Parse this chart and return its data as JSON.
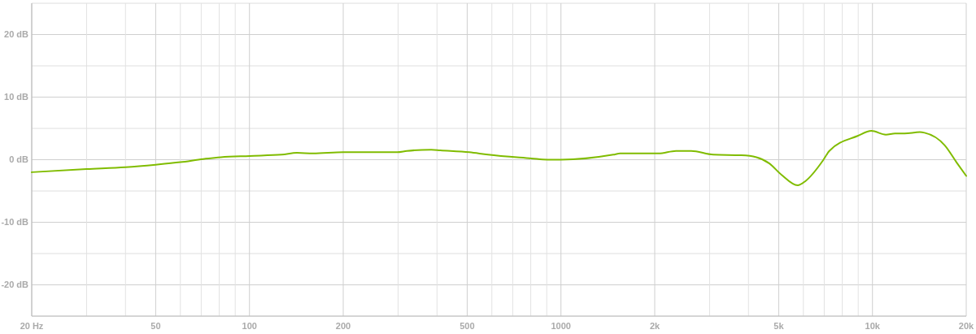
{
  "chart_data": {
    "type": "line",
    "log": "x",
    "grid": true,
    "marker": "none",
    "line_style": "solid",
    "xlim": [
      20,
      20000
    ],
    "ylim": [
      -25,
      25
    ],
    "xticks": [
      {
        "value": 20,
        "label": "20 Hz"
      },
      {
        "value": 30,
        "label": null
      },
      {
        "value": 40,
        "label": null
      },
      50,
      {
        "value": 60,
        "label": null
      },
      {
        "value": 70,
        "label": null
      },
      {
        "value": 80,
        "label": null
      },
      {
        "value": 90,
        "label": null
      },
      100,
      200,
      {
        "value": 300,
        "label": null
      },
      {
        "value": 400,
        "label": null
      },
      500,
      {
        "value": 600,
        "label": null
      },
      {
        "value": 700,
        "label": null
      },
      {
        "value": 800,
        "label": null
      },
      {
        "value": 900,
        "label": null
      },
      1000,
      {
        "value": 2000,
        "label": "2k"
      },
      {
        "value": 3000,
        "label": null
      },
      {
        "value": 4000,
        "label": null
      },
      {
        "value": 5000,
        "label": "5k"
      },
      {
        "value": 6000,
        "label": null
      },
      {
        "value": 7000,
        "label": null
      },
      {
        "value": 8000,
        "label": null
      },
      {
        "value": 9000,
        "label": null
      },
      {
        "value": 10000,
        "label": "10k"
      },
      {
        "value": 20000,
        "label": "20k"
      }
    ],
    "yticks": [
      {
        "value": -25,
        "label": null
      },
      {
        "value": -20,
        "label": "-20 dB"
      },
      {
        "value": -15,
        "label": null
      },
      {
        "value": -10,
        "label": "-10 dB"
      },
      {
        "value": -5,
        "label": null
      },
      {
        "value": 0,
        "label": "0 dB"
      },
      {
        "value": 5,
        "label": null
      },
      {
        "value": 10,
        "label": "10 dB"
      },
      {
        "value": 15,
        "label": null
      },
      {
        "value": 20,
        "label": "20 dB"
      },
      {
        "value": 25,
        "label": null
      }
    ],
    "series": [
      {
        "color": "#80bc00",
        "x": [
          20,
          30,
          40,
          50,
          60,
          71,
          81,
          100,
          127,
          142,
          160,
          200,
          298,
          320,
          383,
          410,
          508,
          583,
          805,
          904,
          1000,
          1473,
          1550,
          1897,
          2060,
          2340,
          2620,
          3083,
          3794,
          4240,
          4667,
          5100,
          5753,
          6100,
          6920,
          7270,
          8960,
          9920,
          11040,
          11810,
          12670,
          14190,
          14700,
          17060,
          18720,
          20000
        ],
        "values": [
          -2.0,
          -1.5,
          -1.2,
          -0.8,
          -0.4,
          0.1,
          0.4,
          0.6,
          0.8,
          1.1,
          1.0,
          1.2,
          1.2,
          1.4,
          1.6,
          1.5,
          1.2,
          0.8,
          0.2,
          0.0,
          0.0,
          0.8,
          1.0,
          1.0,
          1.0,
          1.4,
          1.4,
          0.8,
          0.7,
          0.4,
          -0.6,
          -2.4,
          -4.1,
          -3.4,
          -0.2,
          1.4,
          3.8,
          4.6,
          4.0,
          4.2,
          4.2,
          4.4,
          4.3,
          2.3,
          -0.6,
          -2.6
        ]
      }
    ]
  }
}
